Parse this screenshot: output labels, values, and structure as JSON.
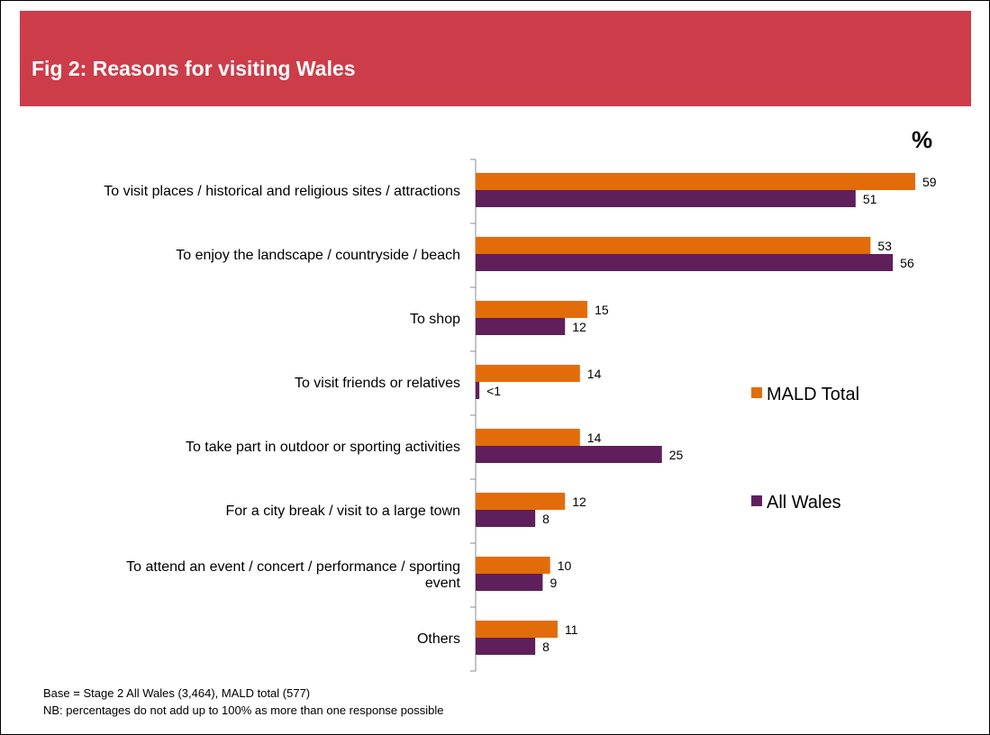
{
  "header": {
    "title": "Fig 2: Reasons for visiting Wales"
  },
  "unit_label": "%",
  "notes": {
    "base": "Base = Stage 2 All Wales  (3,464), MALD total (577)",
    "nb": "NB: percentages do not add up to 100%  as more than one response possible"
  },
  "chart_data": {
    "type": "bar",
    "orientation": "horizontal",
    "title": "Fig 2: Reasons for visiting Wales",
    "xlabel": "%",
    "ylabel": "",
    "xlim": [
      0,
      60
    ],
    "grid": false,
    "legend_position": "right",
    "categories": [
      [
        "To visit places / historical and religious sites / attractions"
      ],
      [
        "To enjoy the landscape / countryside / beach"
      ],
      [
        "To shop"
      ],
      [
        "To visit friends or relatives"
      ],
      [
        "To take part in outdoor or sporting activities"
      ],
      [
        "For a city break / visit to a large town"
      ],
      [
        "To attend an event / concert / performance / sporting",
        "event"
      ],
      [
        "Others"
      ]
    ],
    "series": [
      {
        "name": "MALD Total",
        "color": "#e36c0a",
        "values": [
          59,
          53,
          15,
          14,
          14,
          12,
          10,
          11
        ],
        "labels": [
          "59",
          "53",
          "15",
          "14",
          "14",
          "12",
          "10",
          "11"
        ]
      },
      {
        "name": "All Wales",
        "color": "#5f1f5b",
        "values": [
          51,
          56,
          12,
          0.5,
          25,
          8,
          9,
          8
        ],
        "labels": [
          "51",
          "56",
          "12",
          "<1",
          "25",
          "8",
          "9",
          "8"
        ]
      }
    ]
  }
}
